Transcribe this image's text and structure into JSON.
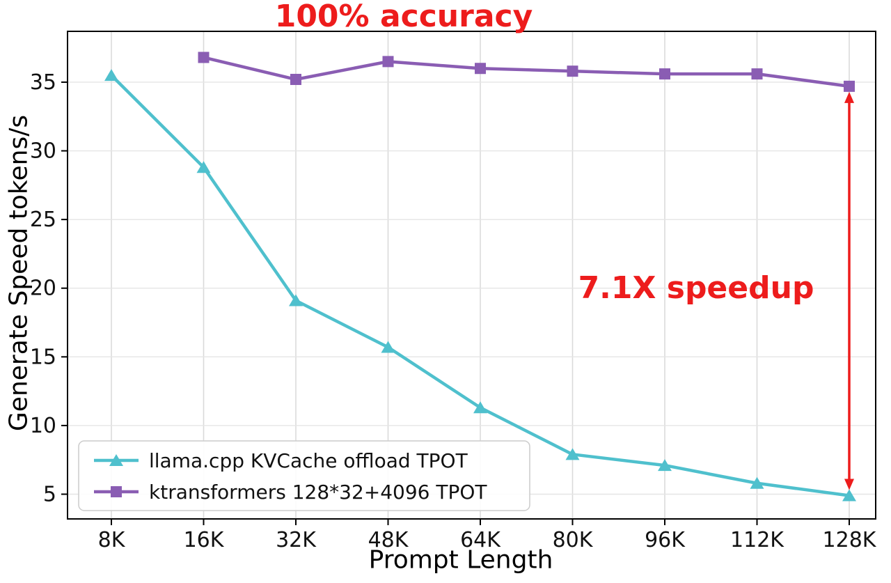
{
  "chart_data": {
    "type": "line",
    "xlabel": "Prompt Length",
    "ylabel": "Generate Speed tokens/s",
    "categories": [
      "8K",
      "16K",
      "32K",
      "48K",
      "64K",
      "80K",
      "96K",
      "112K",
      "128K"
    ],
    "yticks": [
      5,
      10,
      15,
      20,
      25,
      30,
      35
    ],
    "ylim": [
      3.2,
      38.7
    ],
    "grid": true,
    "legend_position": "lower left",
    "series": [
      {
        "name": "llama.cpp KVCache offload TPOT",
        "color": "#4fc0cd",
        "marker": "triangle",
        "values": [
          35.5,
          28.8,
          19.1,
          15.7,
          11.3,
          7.9,
          7.1,
          5.8,
          4.9
        ]
      },
      {
        "name": "ktransformers 128*32+4096 TPOT",
        "color": "#8a5db3",
        "marker": "square",
        "values": [
          null,
          36.8,
          35.2,
          36.5,
          36.0,
          35.8,
          35.6,
          35.6,
          34.7
        ]
      }
    ],
    "annotations": [
      {
        "text": "100% accuracy",
        "color": "#ed1c1c"
      },
      {
        "text": "7.1X speedup",
        "color": "#ed1c1c"
      },
      {
        "type": "double-arrow",
        "category": "128K",
        "y_from": 34.7,
        "y_to": 4.9,
        "color": "#ed1c1c"
      }
    ]
  }
}
